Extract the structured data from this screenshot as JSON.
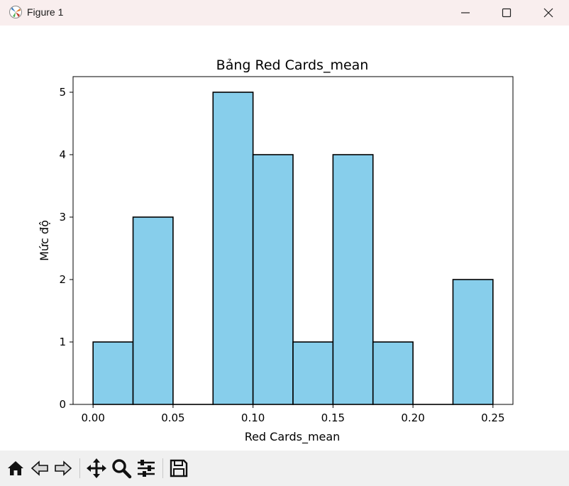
{
  "window": {
    "title": "Figure 1",
    "controls": {
      "minimize": "minimize",
      "maximize": "maximize",
      "close": "close"
    }
  },
  "toolbar": {
    "items": [
      "home-icon",
      "back-arrow-icon",
      "forward-arrow-icon",
      "pan-icon",
      "zoom-icon",
      "configure-subplots-icon",
      "save-icon"
    ]
  },
  "chart_data": {
    "type": "bar",
    "title": "Bảng Red Cards_mean",
    "xlabel": "Red Cards_mean",
    "ylabel": "Mức độ",
    "bin_edges": [
      0.0,
      0.025,
      0.05,
      0.075,
      0.1,
      0.125,
      0.15,
      0.175,
      0.2,
      0.225,
      0.25
    ],
    "values": [
      1,
      3,
      0,
      5,
      4,
      1,
      4,
      1,
      0,
      2
    ],
    "xlim": [
      -0.0125,
      0.2625
    ],
    "ylim": [
      0,
      5.25
    ],
    "xticks": [
      0.0,
      0.05,
      0.1,
      0.15,
      0.2,
      0.25
    ],
    "xtick_labels": [
      "0.00",
      "0.05",
      "0.10",
      "0.15",
      "0.20",
      "0.25"
    ],
    "yticks": [
      0,
      1,
      2,
      3,
      4,
      5
    ],
    "ytick_labels": [
      "0",
      "1",
      "2",
      "3",
      "4",
      "5"
    ],
    "bar_color": "#87ceeb",
    "edge_color": "#000000",
    "grid": false
  }
}
